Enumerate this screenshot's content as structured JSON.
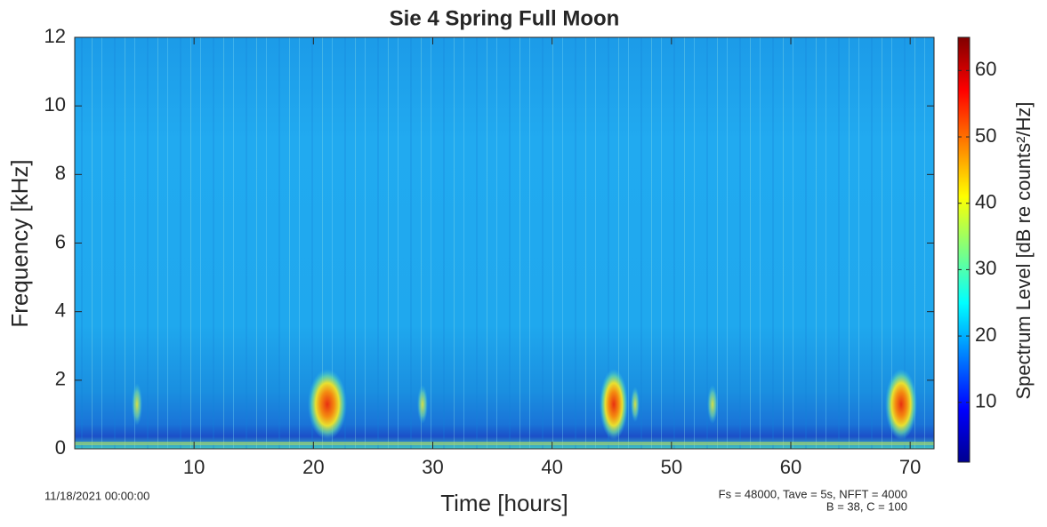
{
  "chart_data": {
    "type": "spectrogram",
    "title": "Sie 4 Spring Full Moon",
    "x_label": "Time [hours]",
    "y_label": "Frequency [kHz]",
    "colorbar_label": "Spectrum Level [dB re counts²/Hz]",
    "colormap": "jet",
    "xlim": [
      0,
      72
    ],
    "xticks": [
      10,
      20,
      30,
      40,
      50,
      60,
      70
    ],
    "ylim": [
      0,
      12
    ],
    "yticks": [
      0,
      2,
      4,
      6,
      8,
      10,
      12
    ],
    "clim": [
      1,
      65
    ],
    "cticks": [
      10,
      20,
      30,
      40,
      50,
      60
    ],
    "annotations": [
      "11/18/2021 00:00:00",
      "Fs = 48000, Tave = 5s, NFFT = 4000",
      "B = 38, C = 100"
    ]
  }
}
